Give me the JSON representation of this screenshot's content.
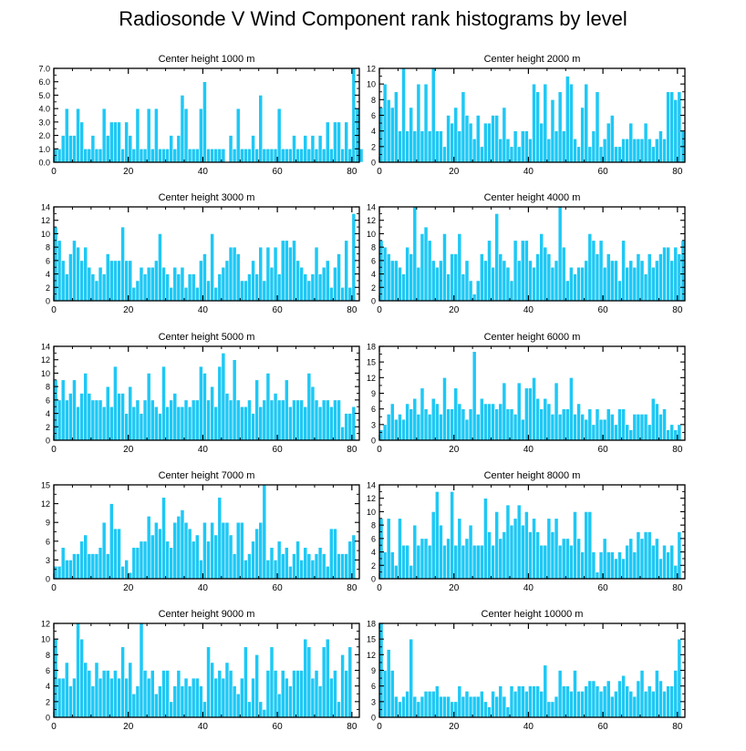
{
  "title": "Radiosonde V Wind Component rank histograms by level",
  "colors": {
    "bar": "#1ec8f5",
    "bar_edge": "#ffffff",
    "axis": "#000000",
    "text": "#000000"
  },
  "chart_data": [
    {
      "type": "bar",
      "title": "Center height 1000 m",
      "xlim": [
        0,
        82
      ],
      "ylim": [
        0,
        7
      ],
      "xticks": [
        0,
        20,
        40,
        60,
        80
      ],
      "yticks": [
        0,
        1,
        2,
        3,
        4,
        5,
        6,
        7
      ],
      "ytick_labels": [
        "0.0",
        "1.0",
        "2.0",
        "3.0",
        "4.0",
        "5.0",
        "6.0",
        "7.0"
      ],
      "values": [
        1,
        1,
        2,
        4,
        2,
        2,
        4,
        3,
        1,
        1,
        2,
        1,
        1,
        4,
        2,
        3,
        3,
        3,
        1,
        3,
        2,
        1,
        4,
        1,
        1,
        4,
        1,
        4,
        1,
        1,
        1,
        2,
        1,
        2,
        5,
        4,
        1,
        1,
        1,
        4,
        6,
        1,
        1,
        1,
        1,
        1,
        0,
        2,
        1,
        4,
        1,
        1,
        1,
        2,
        1,
        5,
        1,
        1,
        1,
        1,
        4,
        1,
        1,
        1,
        2,
        1,
        1,
        2,
        1,
        2,
        1,
        2,
        1,
        3,
        1,
        3,
        3,
        1,
        3,
        1,
        7,
        4,
        1
      ]
    },
    {
      "type": "bar",
      "title": "Center height 2000 m",
      "xlim": [
        0,
        82
      ],
      "ylim": [
        0,
        12
      ],
      "xticks": [
        0,
        20,
        40,
        60,
        80
      ],
      "yticks": [
        0,
        2,
        4,
        6,
        8,
        10,
        12
      ],
      "ytick_labels": [
        "0",
        "2",
        "4",
        "6",
        "8",
        "10",
        "12"
      ],
      "values": [
        7,
        10,
        8,
        7,
        9,
        4,
        12,
        4,
        7,
        4,
        10,
        4,
        10,
        4,
        12,
        4,
        4,
        2,
        6,
        5,
        7,
        4,
        9,
        6,
        5,
        3,
        6,
        2,
        5,
        5,
        6,
        6,
        3,
        7,
        3,
        2,
        4,
        2,
        4,
        4,
        3,
        10,
        9,
        5,
        10,
        3,
        8,
        4,
        9,
        4,
        11,
        10,
        3,
        2,
        7,
        10,
        2,
        4,
        9,
        2,
        3,
        5,
        6,
        2,
        2,
        3,
        3,
        5,
        3,
        3,
        3,
        5,
        3,
        2,
        3,
        4,
        3,
        9,
        9,
        8,
        9,
        4
      ]
    },
    {
      "type": "bar",
      "title": "Center height 3000 m",
      "xlim": [
        0,
        82
      ],
      "ylim": [
        0,
        14
      ],
      "xticks": [
        0,
        20,
        40,
        60,
        80
      ],
      "yticks": [
        0,
        2,
        4,
        6,
        8,
        10,
        12,
        14
      ],
      "ytick_labels": [
        "0",
        "2",
        "4",
        "6",
        "8",
        "10",
        "12",
        "14"
      ],
      "values": [
        11,
        9,
        6,
        4,
        7,
        9,
        8,
        6,
        8,
        5,
        4,
        3,
        5,
        4,
        7,
        6,
        6,
        6,
        11,
        6,
        6,
        2,
        3,
        5,
        4,
        5,
        5,
        6,
        10,
        5,
        4,
        2,
        5,
        4,
        5,
        2,
        4,
        4,
        2,
        6,
        7,
        3,
        10,
        2,
        4,
        5,
        6,
        8,
        8,
        7,
        3,
        3,
        4,
        6,
        4,
        8,
        3,
        8,
        5,
        8,
        4,
        9,
        9,
        8,
        9,
        6,
        5,
        4,
        3,
        4,
        8,
        4,
        5,
        6,
        2,
        5,
        7,
        2,
        9,
        2,
        13
      ]
    },
    {
      "type": "bar",
      "title": "Center height 4000 m",
      "xlim": [
        0,
        82
      ],
      "ylim": [
        0,
        14
      ],
      "xticks": [
        0,
        20,
        40,
        60,
        80
      ],
      "yticks": [
        0,
        2,
        4,
        6,
        8,
        10,
        12,
        14
      ],
      "ytick_labels": [
        "0",
        "2",
        "4",
        "6",
        "8",
        "10",
        "12",
        "14"
      ],
      "values": [
        9,
        8,
        7,
        6,
        6,
        5,
        4,
        8,
        7,
        14,
        5,
        10,
        11,
        9,
        6,
        5,
        6,
        10,
        4,
        7,
        7,
        10,
        4,
        6,
        3,
        1,
        3,
        7,
        6,
        9,
        5,
        13,
        7,
        6,
        5,
        3,
        9,
        6,
        9,
        9,
        6,
        5,
        7,
        10,
        8,
        7,
        5,
        6,
        14,
        8,
        3,
        5,
        4,
        5,
        5,
        6,
        10,
        9,
        7,
        9,
        5,
        7,
        6,
        6,
        3,
        9,
        5,
        6,
        5,
        7,
        6,
        4,
        7,
        5,
        6,
        7,
        8,
        8,
        6,
        8,
        7,
        9
      ]
    },
    {
      "type": "bar",
      "title": "Center height 5000 m",
      "xlim": [
        0,
        82
      ],
      "ylim": [
        0,
        14
      ],
      "xticks": [
        0,
        20,
        40,
        60,
        80
      ],
      "yticks": [
        0,
        2,
        4,
        6,
        8,
        10,
        12,
        14
      ],
      "ytick_labels": [
        "0",
        "2",
        "4",
        "6",
        "8",
        "10",
        "12",
        "14"
      ],
      "values": [
        9,
        6,
        9,
        6,
        7,
        9,
        5,
        7,
        10,
        7,
        6,
        6,
        6,
        5,
        8,
        5,
        11,
        7,
        7,
        4,
        8,
        5,
        6,
        4,
        6,
        10,
        6,
        5,
        4,
        11,
        5,
        6,
        7,
        5,
        5,
        6,
        5,
        6,
        6,
        11,
        10,
        6,
        8,
        5,
        11,
        13,
        7,
        6,
        12,
        6,
        5,
        5,
        6,
        4,
        9,
        5,
        6,
        10,
        6,
        7,
        6,
        6,
        9,
        5,
        6,
        6,
        6,
        5,
        10,
        8,
        6,
        5,
        6,
        6,
        5,
        6,
        6,
        2,
        4,
        4,
        5
      ]
    },
    {
      "type": "bar",
      "title": "Center height 6000 m",
      "xlim": [
        0,
        82
      ],
      "ylim": [
        0,
        18
      ],
      "xticks": [
        0,
        20,
        40,
        60,
        80
      ],
      "yticks": [
        0,
        3,
        6,
        9,
        12,
        15,
        18
      ],
      "ytick_labels": [
        "0",
        "3",
        "6",
        "9",
        "12",
        "15",
        "18"
      ],
      "values": [
        2,
        3,
        5,
        7,
        4,
        5,
        4,
        7,
        6,
        8,
        5,
        10,
        6,
        5,
        8,
        7,
        5,
        12,
        6,
        6,
        10,
        7,
        6,
        4,
        6,
        17,
        5,
        8,
        7,
        7,
        7,
        6,
        7,
        11,
        6,
        6,
        5,
        11,
        4,
        10,
        10,
        12,
        8,
        6,
        8,
        7,
        5,
        11,
        5,
        6,
        6,
        12,
        5,
        7,
        5,
        4,
        6,
        3,
        6,
        4,
        4,
        6,
        5,
        3,
        6,
        6,
        3,
        2,
        5,
        5,
        5,
        5,
        3,
        8,
        7,
        5,
        6,
        2,
        3,
        2,
        3
      ]
    },
    {
      "type": "bar",
      "title": "Center height 7000 m",
      "xlim": [
        0,
        82
      ],
      "ylim": [
        0,
        15
      ],
      "xticks": [
        0,
        20,
        40,
        60,
        80
      ],
      "yticks": [
        0,
        3,
        6,
        9,
        12,
        15
      ],
      "ytick_labels": [
        "0",
        "3",
        "6",
        "9",
        "12",
        "15"
      ],
      "values": [
        2,
        2,
        5,
        3,
        3,
        4,
        4,
        6,
        7,
        4,
        4,
        4,
        5,
        9,
        4,
        12,
        8,
        8,
        2,
        3,
        1,
        5,
        5,
        6,
        6,
        10,
        7,
        9,
        8,
        13,
        6,
        5,
        9,
        10,
        11,
        9,
        8,
        6,
        7,
        3,
        9,
        6,
        9,
        7,
        13,
        9,
        9,
        7,
        4,
        9,
        9,
        3,
        4,
        6,
        8,
        9,
        15,
        3,
        5,
        3,
        6,
        4,
        5,
        2,
        4,
        6,
        3,
        5,
        4,
        3,
        4,
        5,
        4,
        2,
        8,
        8,
        4,
        4,
        4,
        6,
        7
      ]
    },
    {
      "type": "bar",
      "title": "Center height 8000 m",
      "xlim": [
        0,
        82
      ],
      "ylim": [
        0,
        14
      ],
      "xticks": [
        0,
        20,
        40,
        60,
        80
      ],
      "yticks": [
        0,
        2,
        4,
        6,
        8,
        10,
        12,
        14
      ],
      "ytick_labels": [
        "0",
        "2",
        "4",
        "6",
        "8",
        "10",
        "12",
        "14"
      ],
      "values": [
        9,
        4,
        9,
        4,
        2,
        9,
        5,
        5,
        2,
        8,
        5,
        6,
        6,
        5,
        10,
        13,
        8,
        5,
        6,
        13,
        5,
        9,
        5,
        6,
        8,
        5,
        5,
        5,
        12,
        7,
        5,
        10,
        6,
        7,
        11,
        8,
        9,
        11,
        8,
        10,
        7,
        9,
        7,
        5,
        5,
        9,
        7,
        9,
        5,
        6,
        6,
        5,
        10,
        6,
        4,
        10,
        10,
        4,
        1,
        4,
        6,
        4,
        4,
        3,
        4,
        3,
        5,
        6,
        4,
        7,
        6,
        7,
        7,
        5,
        6,
        3,
        5,
        4,
        5,
        2,
        7
      ]
    },
    {
      "type": "bar",
      "title": "Center height 9000 m",
      "xlim": [
        0,
        82
      ],
      "ylim": [
        0,
        12
      ],
      "xticks": [
        0,
        20,
        40,
        60,
        80
      ],
      "yticks": [
        0,
        2,
        4,
        6,
        8,
        10,
        12
      ],
      "ytick_labels": [
        "0",
        "2",
        "4",
        "6",
        "8",
        "10",
        "12"
      ],
      "values": [
        10,
        5,
        5,
        7,
        4,
        5,
        12,
        10,
        7,
        6,
        4,
        7,
        5,
        6,
        6,
        5,
        6,
        5,
        9,
        5,
        7,
        3,
        4,
        12,
        6,
        5,
        6,
        3,
        4,
        6,
        6,
        2,
        4,
        6,
        4,
        5,
        4,
        5,
        5,
        4,
        2,
        9,
        7,
        5,
        6,
        5,
        7,
        6,
        4,
        3,
        5,
        9,
        2,
        5,
        8,
        2,
        1,
        6,
        9,
        6,
        3,
        6,
        5,
        4,
        6,
        6,
        6,
        10,
        9,
        5,
        6,
        4,
        9,
        10,
        5,
        6,
        2,
        8,
        6,
        9
      ]
    },
    {
      "type": "bar",
      "title": "Center height 10000 m",
      "xlim": [
        0,
        82
      ],
      "ylim": [
        0,
        18
      ],
      "xticks": [
        0,
        20,
        40,
        60,
        80
      ],
      "yticks": [
        0,
        3,
        6,
        9,
        12,
        15,
        18
      ],
      "ytick_labels": [
        "0",
        "3",
        "6",
        "9",
        "12",
        "15",
        "18"
      ],
      "values": [
        18,
        9,
        13,
        9,
        4,
        3,
        4,
        5,
        15,
        4,
        3,
        4,
        5,
        5,
        5,
        6,
        4,
        4,
        4,
        3,
        3,
        6,
        4,
        5,
        4,
        4,
        4,
        5,
        3,
        2,
        5,
        4,
        6,
        4,
        2,
        6,
        5,
        6,
        6,
        5,
        6,
        6,
        6,
        5,
        10,
        3,
        3,
        4,
        9,
        6,
        6,
        5,
        9,
        5,
        5,
        6,
        7,
        7,
        6,
        5,
        6,
        7,
        4,
        5,
        7,
        8,
        6,
        5,
        4,
        7,
        9,
        5,
        6,
        5,
        9,
        7,
        5,
        6,
        6,
        9,
        15
      ]
    }
  ]
}
